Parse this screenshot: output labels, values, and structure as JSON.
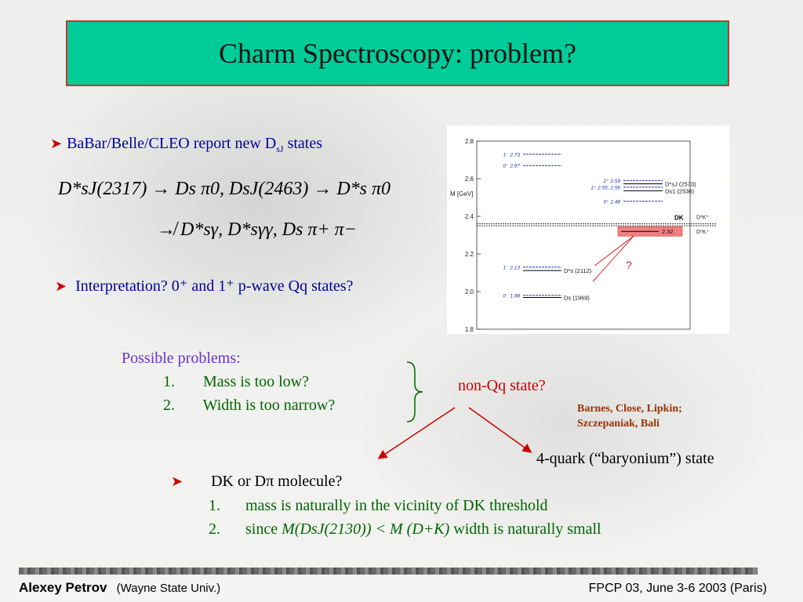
{
  "slide": {
    "title": "Charm Spectroscopy: problem?"
  },
  "bullet1": {
    "text": "BaBar/Belle/CLEO report new D",
    "sub": "sJ",
    "suffix": " states"
  },
  "equation": {
    "line1": "D*sJ(2317) → Ds π0, DsJ(2463) → D*s π0",
    "line2": "↛ D*sγ, D*sγγ, Ds π+ π−"
  },
  "bullet2": {
    "text": "Interpretation?  0⁺ and 1⁺ p-wave Qq states?"
  },
  "problems": {
    "heading": "Possible problems:",
    "items": [
      {
        "num": "1.",
        "text": "Mass is too low?"
      },
      {
        "num": "2.",
        "text": "Width is too narrow?"
      }
    ],
    "conclusion": "non-Qq state?"
  },
  "citation": {
    "line1": "Barnes, Close, Lipkin;",
    "line2": "Szczepaniak, Bali"
  },
  "four_quark": "4-quark (“baryonium”) state",
  "molecule": {
    "heading": "DK or Dπ molecule?",
    "items": [
      {
        "num": "1.",
        "text": "mass is naturally in the vicinity of DK threshold"
      },
      {
        "num": "2.",
        "text_pre": "since ",
        "math": "M(DsJ(2130)) < M (D+K)",
        "text_post": " width is naturally small"
      }
    ]
  },
  "footer": {
    "author": "Alexey Petrov",
    "affiliation": "(Wayne State Univ.)",
    "conference": "FPCP 03, June 3-6 2003 (Paris)"
  },
  "chart_data": {
    "type": "level-diagram",
    "ylabel": "M [GeV]",
    "ylim": [
      1.8,
      2.8
    ],
    "yticks": [
      "2.8",
      "2.6",
      "2.4",
      "2.2",
      "2.0",
      "1.8"
    ],
    "threshold_label": "DK",
    "threshold_levels": [
      {
        "mass": 2.36,
        "label": "D*K⁰"
      },
      {
        "mass": 2.35,
        "label": "D⁰K⁺"
      }
    ],
    "predicted_levels": [
      {
        "mass": 2.73,
        "label": "1⁻ 2.73"
      },
      {
        "mass": 2.67,
        "label": "0⁻ 2.67"
      },
      {
        "mass": 2.59,
        "label": "2⁺ 2.59"
      },
      {
        "mass": 2.555,
        "label": "1⁺ 2.55, 2.56"
      },
      {
        "mass": 2.48,
        "label": "0⁺ 2.48"
      },
      {
        "mass": 2.13,
        "label": "1⁻ 2.13"
      },
      {
        "mass": 1.98,
        "label": "0⁻ 1.98"
      }
    ],
    "observed_levels": [
      {
        "mass": 2.573,
        "label": "D*sJ (2573)"
      },
      {
        "mass": 2.536,
        "label": "Ds1 (2536)"
      },
      {
        "mass": 2.112,
        "label": "D*s (2112)"
      },
      {
        "mass": 1.969,
        "label": "Ds (1969)"
      }
    ],
    "new_state": {
      "mass": 2.32,
      "label": "2.32"
    },
    "question": "?"
  }
}
